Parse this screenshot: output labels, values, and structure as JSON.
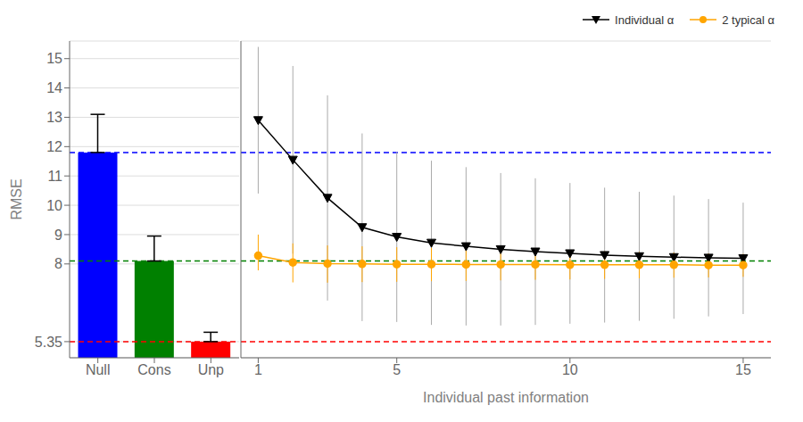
{
  "chart_data": [
    {
      "type": "bar",
      "categories": [
        "Null",
        "Cons",
        "Unp"
      ],
      "values": [
        11.8,
        8.1,
        5.35
      ],
      "colors": [
        "#0000ff",
        "#008000",
        "#ff0000"
      ],
      "errors_up": [
        1.3,
        0.85,
        0.32
      ],
      "errors_down": [
        0,
        0,
        0
      ],
      "reference_lines": [
        {
          "value": 11.8,
          "color": "blue"
        },
        {
          "value": 8.1,
          "color": "green"
        },
        {
          "value": 5.35,
          "color": "red"
        }
      ],
      "ylabel": "RMSE",
      "ylim": [
        4.8,
        15.6
      ],
      "yticks": [
        5.35,
        8,
        9,
        10,
        11,
        12,
        13,
        14,
        15
      ],
      "grid": true
    },
    {
      "type": "line",
      "x": [
        1,
        2,
        3,
        4,
        5,
        6,
        7,
        8,
        9,
        10,
        11,
        12,
        13,
        14,
        15
      ],
      "series": [
        {
          "name": "Individual α",
          "color": "black",
          "marker": "triangle-down",
          "values": [
            12.9,
            11.55,
            10.25,
            9.25,
            8.92,
            8.72,
            8.6,
            8.5,
            8.42,
            8.36,
            8.3,
            8.26,
            8.23,
            8.21,
            8.19
          ],
          "errors_up": [
            2.5,
            3.2,
            3.5,
            3.2,
            2.9,
            2.8,
            2.7,
            2.6,
            2.5,
            2.4,
            2.3,
            2.2,
            2.1,
            2.0,
            1.9
          ],
          "errors_down": [
            2.5,
            3.2,
            3.5,
            3.2,
            2.9,
            2.8,
            2.7,
            2.6,
            2.5,
            2.4,
            2.3,
            2.2,
            2.1,
            2.0,
            1.9
          ]
        },
        {
          "name": "2 typical α",
          "color": "orange",
          "marker": "circle",
          "values": [
            8.28,
            8.05,
            8.01,
            8.0,
            7.99,
            7.99,
            7.98,
            7.98,
            7.98,
            7.97,
            7.97,
            7.97,
            7.97,
            7.96,
            7.96
          ],
          "errors_up": [
            0.72,
            0.65,
            0.62,
            0.6,
            0.58,
            0.56,
            0.54,
            0.52,
            0.5,
            0.48,
            0.46,
            0.44,
            0.42,
            0.4,
            0.38
          ],
          "errors_down": [
            0.5,
            0.68,
            0.65,
            0.62,
            0.6,
            0.58,
            0.56,
            0.54,
            0.52,
            0.5,
            0.48,
            0.46,
            0.44,
            0.42,
            0.4
          ]
        }
      ],
      "reference_lines": [
        {
          "value": 11.8,
          "color": "blue"
        },
        {
          "value": 8.1,
          "color": "green"
        },
        {
          "value": 5.35,
          "color": "red"
        }
      ],
      "xlabel": "Individual past information",
      "xlim": [
        0.5,
        15.8
      ],
      "xticks": [
        1,
        5,
        10,
        15
      ],
      "ylim": [
        4.8,
        15.6
      ],
      "yticks": [
        5.35,
        8,
        9,
        10,
        11,
        12,
        13,
        14,
        15
      ],
      "grid": true,
      "legend": "upper right",
      "tick_labels": "x"
    }
  ]
}
